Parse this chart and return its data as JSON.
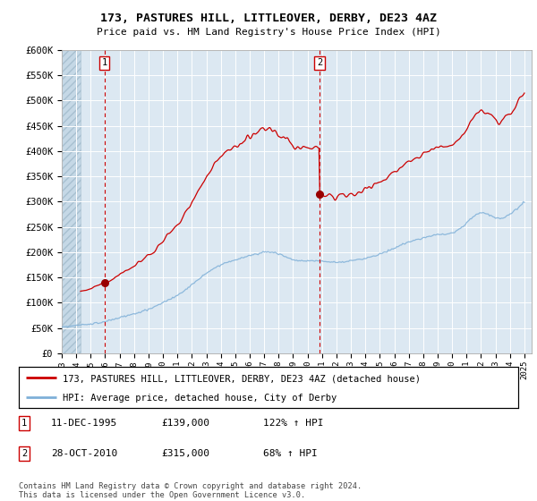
{
  "title": "173, PASTURES HILL, LITTLEOVER, DERBY, DE23 4AZ",
  "subtitle": "Price paid vs. HM Land Registry's House Price Index (HPI)",
  "ylabel_ticks": [
    "£0",
    "£50K",
    "£100K",
    "£150K",
    "£200K",
    "£250K",
    "£300K",
    "£350K",
    "£400K",
    "£450K",
    "£500K",
    "£550K",
    "£600K"
  ],
  "ytick_values": [
    0,
    50000,
    100000,
    150000,
    200000,
    250000,
    300000,
    350000,
    400000,
    450000,
    500000,
    550000,
    600000
  ],
  "xlim_start": 1993.0,
  "xlim_end": 2025.5,
  "ylim_min": 0,
  "ylim_max": 600000,
  "sale1_date": 1995.95,
  "sale1_price": 139000,
  "sale2_date": 2010.83,
  "sale2_price": 315000,
  "legend_line1": "173, PASTURES HILL, LITTLEOVER, DERBY, DE23 4AZ (detached house)",
  "legend_line2": "HPI: Average price, detached house, City of Derby",
  "footnote": "Contains HM Land Registry data © Crown copyright and database right 2024.\nThis data is licensed under the Open Government Licence v3.0.",
  "plot_bg_color": "#dce8f2",
  "grid_color": "#ffffff",
  "red_line_color": "#cc0000",
  "blue_line_color": "#7fb0d8",
  "marker_color": "#990000",
  "dashed_vline_color": "#cc0000",
  "hatch_region_end": 1994.3
}
